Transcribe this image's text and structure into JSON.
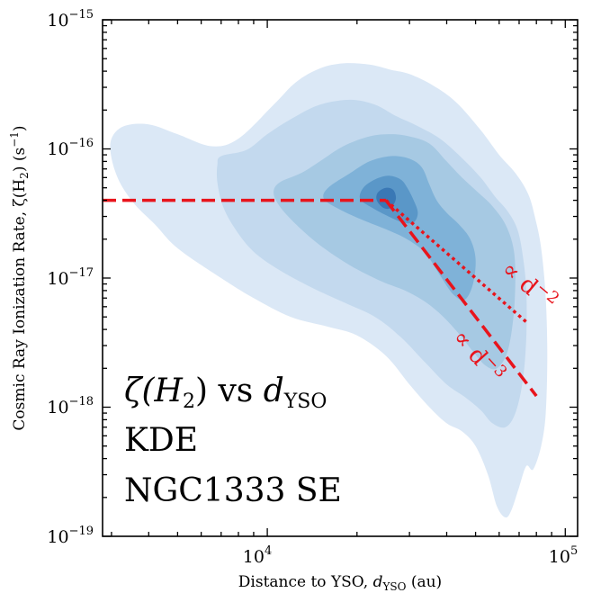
{
  "chart_data": {
    "type": "kde-contour",
    "xlabel": "Distance to YSO, d_YSO (au)",
    "xlabel_parts": {
      "pre": "Distance to YSO, ",
      "var": "d",
      "sub": "YSO",
      "post": " (au)"
    },
    "ylabel": "Cosmic Ray Ionization Rate, ζ(H₂) (s⁻¹)",
    "ylabel_parts": {
      "pre": "Cosmic Ray Ionization Rate, ζ(H",
      "sub": "2",
      "mid": ") (s",
      "sup": "−1",
      "post": ")"
    },
    "xscale": "log",
    "yscale": "log",
    "xlim": [
      2800,
      110000
    ],
    "ylim": [
      1e-19,
      1e-15
    ],
    "x_ticks": [
      {
        "value": 10000,
        "base": "10",
        "exp": "4"
      },
      {
        "value": 100000,
        "base": "10",
        "exp": "5"
      }
    ],
    "y_ticks": [
      {
        "value": 1e-19,
        "base": "10",
        "exp": "−19"
      },
      {
        "value": 1e-18,
        "base": "10",
        "exp": "−18"
      },
      {
        "value": 1e-17,
        "base": "10",
        "exp": "−17"
      },
      {
        "value": 1e-16,
        "base": "10",
        "exp": "−16"
      },
      {
        "value": 1e-15,
        "base": "10",
        "exp": "−15"
      }
    ],
    "annotation_lines": [
      {
        "sym": "ζ(H",
        "sub": "2",
        "rest": ") vs ",
        "var": "d",
        "var_sub": "YSO"
      },
      {
        "text": "KDE"
      },
      {
        "text": "NGC1333 SE"
      }
    ],
    "contour_levels": [
      {
        "level": 1,
        "color": "#dbe8f6",
        "points": [
          [
            3300,
            1.5e-16
          ],
          [
            4000,
            1.55e-16
          ],
          [
            5000,
            1.3e-16
          ],
          [
            6500,
            1.05e-16
          ],
          [
            8000,
            1.2e-16
          ],
          [
            10500,
            2.2e-16
          ],
          [
            12500,
            3.3e-16
          ],
          [
            15000,
            4.2e-16
          ],
          [
            18000,
            4.6e-16
          ],
          [
            22000,
            4.5e-16
          ],
          [
            26000,
            4.1e-16
          ],
          [
            30000,
            3.8e-16
          ],
          [
            36000,
            3.1e-16
          ],
          [
            43000,
            2.3e-16
          ],
          [
            52000,
            1.4e-16
          ],
          [
            60000,
            9e-17
          ],
          [
            68000,
            6.5e-17
          ],
          [
            75000,
            4.5e-17
          ],
          [
            79000,
            3e-17
          ],
          [
            83000,
            1.7e-17
          ],
          [
            86000,
            7e-18
          ],
          [
            87000,
            2.5e-18
          ],
          [
            86000,
            9e-19
          ],
          [
            83000,
            5e-19
          ],
          [
            78000,
            3.3e-19
          ],
          [
            74000,
            3.5e-19
          ],
          [
            70000,
            2.4e-19
          ],
          [
            66000,
            1.6e-19
          ],
          [
            63000,
            1.4e-19
          ],
          [
            59000,
            1.7e-19
          ],
          [
            55000,
            3e-19
          ],
          [
            50000,
            5e-19
          ],
          [
            45000,
            6.5e-19
          ],
          [
            40000,
            7.5e-19
          ],
          [
            35000,
            1e-18
          ],
          [
            30000,
            1.5e-18
          ],
          [
            25000,
            2.5e-18
          ],
          [
            20000,
            3.6e-18
          ],
          [
            16000,
            4.2e-18
          ],
          [
            12000,
            5e-18
          ],
          [
            9000,
            7e-18
          ],
          [
            7000,
            1e-17
          ],
          [
            5000,
            1.7e-17
          ],
          [
            4200,
            2.6e-17
          ],
          [
            3600,
            3.7e-17
          ],
          [
            3200,
            5.5e-17
          ],
          [
            3000,
            8.5e-17
          ],
          [
            3000,
            1.2e-16
          ]
        ]
      },
      {
        "level": 2,
        "color": "#c3d9ee",
        "points": [
          [
            7000,
            8.8e-17
          ],
          [
            8500,
            9.8e-17
          ],
          [
            10000,
            1.3e-16
          ],
          [
            12000,
            1.7e-16
          ],
          [
            15000,
            2.2e-16
          ],
          [
            19000,
            2.4e-16
          ],
          [
            23000,
            2.2e-16
          ],
          [
            27000,
            1.8e-16
          ],
          [
            32000,
            1.5e-16
          ],
          [
            38000,
            1.2e-16
          ],
          [
            45000,
            8.5e-17
          ],
          [
            52000,
            6e-17
          ],
          [
            58000,
            4.3e-17
          ],
          [
            64000,
            3.3e-17
          ],
          [
            69000,
            2.4e-17
          ],
          [
            72000,
            1.5e-17
          ],
          [
            74000,
            8e-18
          ],
          [
            74000,
            3.5e-18
          ],
          [
            72000,
            1.6e-18
          ],
          [
            68000,
            9e-19
          ],
          [
            63000,
            7e-19
          ],
          [
            57000,
            7.5e-19
          ],
          [
            52000,
            9.5e-19
          ],
          [
            46000,
            1.2e-18
          ],
          [
            40000,
            1.5e-18
          ],
          [
            34000,
            2.2e-18
          ],
          [
            28000,
            3.5e-18
          ],
          [
            23000,
            5e-18
          ],
          [
            18000,
            6.5e-18
          ],
          [
            14000,
            8.5e-18
          ],
          [
            11000,
            1.15e-17
          ],
          [
            9000,
            1.6e-17
          ],
          [
            7800,
            2.4e-17
          ],
          [
            7100,
            3.6e-17
          ],
          [
            6800,
            5.5e-17
          ],
          [
            6800,
            7.5e-17
          ]
        ]
      },
      {
        "level": 3,
        "color": "#a6c9e3",
        "points": [
          [
            11000,
            5.5e-17
          ],
          [
            13000,
            6.5e-17
          ],
          [
            15000,
            8e-17
          ],
          [
            18000,
            1.05e-16
          ],
          [
            22000,
            1.25e-16
          ],
          [
            26000,
            1.3e-16
          ],
          [
            30000,
            1.25e-16
          ],
          [
            35000,
            1.1e-16
          ],
          [
            40000,
            8e-17
          ],
          [
            45000,
            6e-17
          ],
          [
            51000,
            4.6e-17
          ],
          [
            57000,
            3.6e-17
          ],
          [
            63000,
            2.6e-17
          ],
          [
            67000,
            1.7e-17
          ],
          [
            68000,
            1e-17
          ],
          [
            67000,
            5e-18
          ],
          [
            64000,
            2.7e-18
          ],
          [
            59000,
            2e-18
          ],
          [
            54000,
            2.1e-18
          ],
          [
            49000,
            2.7e-18
          ],
          [
            44000,
            3.7e-18
          ],
          [
            39000,
            5e-18
          ],
          [
            34000,
            6.5e-18
          ],
          [
            29000,
            8e-18
          ],
          [
            24000,
            9.5e-18
          ],
          [
            19000,
            1.25e-17
          ],
          [
            15000,
            1.8e-17
          ],
          [
            12500,
            2.6e-17
          ],
          [
            11000,
            3.6e-17
          ],
          [
            10500,
            4.6e-17
          ]
        ]
      },
      {
        "level": 4,
        "color": "#7fb2d8",
        "points": [
          [
            16000,
            5e-17
          ],
          [
            19000,
            6.5e-17
          ],
          [
            22000,
            8e-17
          ],
          [
            26000,
            8.8e-17
          ],
          [
            30000,
            8.4e-17
          ],
          [
            33000,
            7.2e-17
          ],
          [
            35000,
            5.3e-17
          ],
          [
            37000,
            4e-17
          ],
          [
            40000,
            3.2e-17
          ],
          [
            44000,
            2.6e-17
          ],
          [
            48000,
            2e-17
          ],
          [
            50000,
            1.4e-17
          ],
          [
            49000,
            9e-18
          ],
          [
            46000,
            6.8e-18
          ],
          [
            42000,
            7.5e-18
          ],
          [
            38000,
            1.05e-17
          ],
          [
            34000,
            1.55e-17
          ],
          [
            30000,
            1.95e-17
          ],
          [
            26000,
            2.3e-17
          ],
          [
            21000,
            2.8e-17
          ],
          [
            17500,
            3.4e-17
          ],
          [
            15500,
            4.1e-17
          ]
        ]
      },
      {
        "level": 5,
        "color": "#5a97c8",
        "points": [
          [
            21000,
            5e-17
          ],
          [
            23000,
            5.8e-17
          ],
          [
            25500,
            6.2e-17
          ],
          [
            28000,
            5.8e-17
          ],
          [
            29500,
            5e-17
          ],
          [
            31000,
            4e-17
          ],
          [
            32000,
            3.2e-17
          ],
          [
            31000,
            2.7e-17
          ],
          [
            28500,
            2.7e-17
          ],
          [
            25500,
            3e-17
          ],
          [
            22500,
            3.5e-17
          ],
          [
            20500,
            4.1e-17
          ]
        ]
      },
      {
        "level": 6,
        "color": "#3a78b5",
        "points": [
          [
            23500,
            4.6e-17
          ],
          [
            25000,
            5e-17
          ],
          [
            26500,
            4.8e-17
          ],
          [
            27000,
            4.1e-17
          ],
          [
            26000,
            3.5e-17
          ],
          [
            24500,
            3.5e-17
          ],
          [
            23300,
            4e-17
          ]
        ]
      }
    ],
    "model_lines": [
      {
        "name": "constant",
        "style": "dashed",
        "color": "#e8141c",
        "points": [
          [
            2800,
            4e-17
          ],
          [
            25000,
            4e-17
          ]
        ]
      },
      {
        "name": "∝ d^-3",
        "style": "dashed",
        "color": "#e8141c",
        "points": [
          [
            25000,
            4e-17
          ],
          [
            80000,
            1.22e-18
          ]
        ],
        "label": "∝ d",
        "label_exp": "−3"
      },
      {
        "name": "∝ d^-2",
        "style": "dotted",
        "color": "#e8141c",
        "points": [
          [
            25000,
            4e-17
          ],
          [
            75000,
            4.45e-18
          ]
        ],
        "label": "∝ d",
        "label_exp": "−2"
      }
    ],
    "colors": {
      "contour_base": "#dbe8f6",
      "contour_peak": "#3a78b5",
      "model": "#e8141c",
      "axis": "#000000"
    }
  }
}
